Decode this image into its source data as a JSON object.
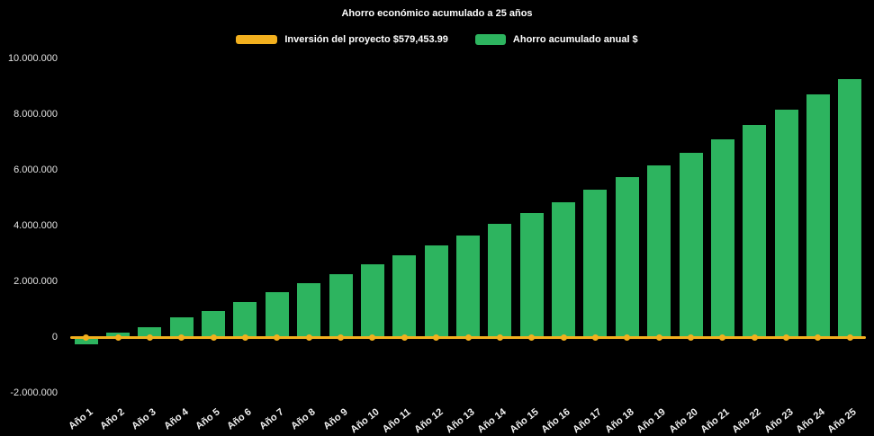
{
  "page": {
    "background": "#000000"
  },
  "chart_data": {
    "type": "bar",
    "title": "Ahorro económico acumulado a 25 años",
    "xlabel": "",
    "ylabel": "",
    "categories": [
      "Año 1",
      "Año 2",
      "Año 3",
      "Año 4",
      "Año 5",
      "Año 6",
      "Año 7",
      "Año 8",
      "Año 9",
      "Año 10",
      "Año 11",
      "Año 12",
      "Año 13",
      "Año 14",
      "Año 15",
      "Año 16",
      "Año 17",
      "Año 18",
      "Año 19",
      "Año 20",
      "Año 21",
      "Año 22",
      "Año 23",
      "Año 24",
      "Año 25"
    ],
    "series": [
      {
        "name": "Inversión del proyecto $579,453.99",
        "type": "line",
        "color": "#F2B01E",
        "values": [
          0,
          0,
          0,
          0,
          0,
          0,
          0,
          0,
          0,
          0,
          0,
          0,
          0,
          0,
          0,
          0,
          0,
          0,
          0,
          0,
          0,
          0,
          0,
          0,
          0
        ]
      },
      {
        "name": "Ahorro acumulado anual $",
        "type": "bar",
        "color": "#2DB45F",
        "values": [
          -250000,
          150000,
          350000,
          700000,
          950000,
          1250000,
          1600000,
          1950000,
          2250000,
          2600000,
          2950000,
          3300000,
          3650000,
          4050000,
          4450000,
          4850000,
          5300000,
          5750000,
          6150000,
          6600000,
          7100000,
          7600000,
          8150000,
          8700000,
          9250000
        ]
      }
    ],
    "ylim": [
      -2000000,
      10000000
    ],
    "ytick_step": 2000000,
    "y_tick_values": [
      10000000,
      8000000,
      6000000,
      4000000,
      2000000,
      0,
      -2000000
    ],
    "y_tick_labels": [
      "10.000.000",
      "8.000.000",
      "6.000.000",
      "4.000.000",
      "2.000.000",
      "0",
      "-2.000.000"
    ],
    "grid": false,
    "legend_position": "top",
    "background": "#000000"
  }
}
